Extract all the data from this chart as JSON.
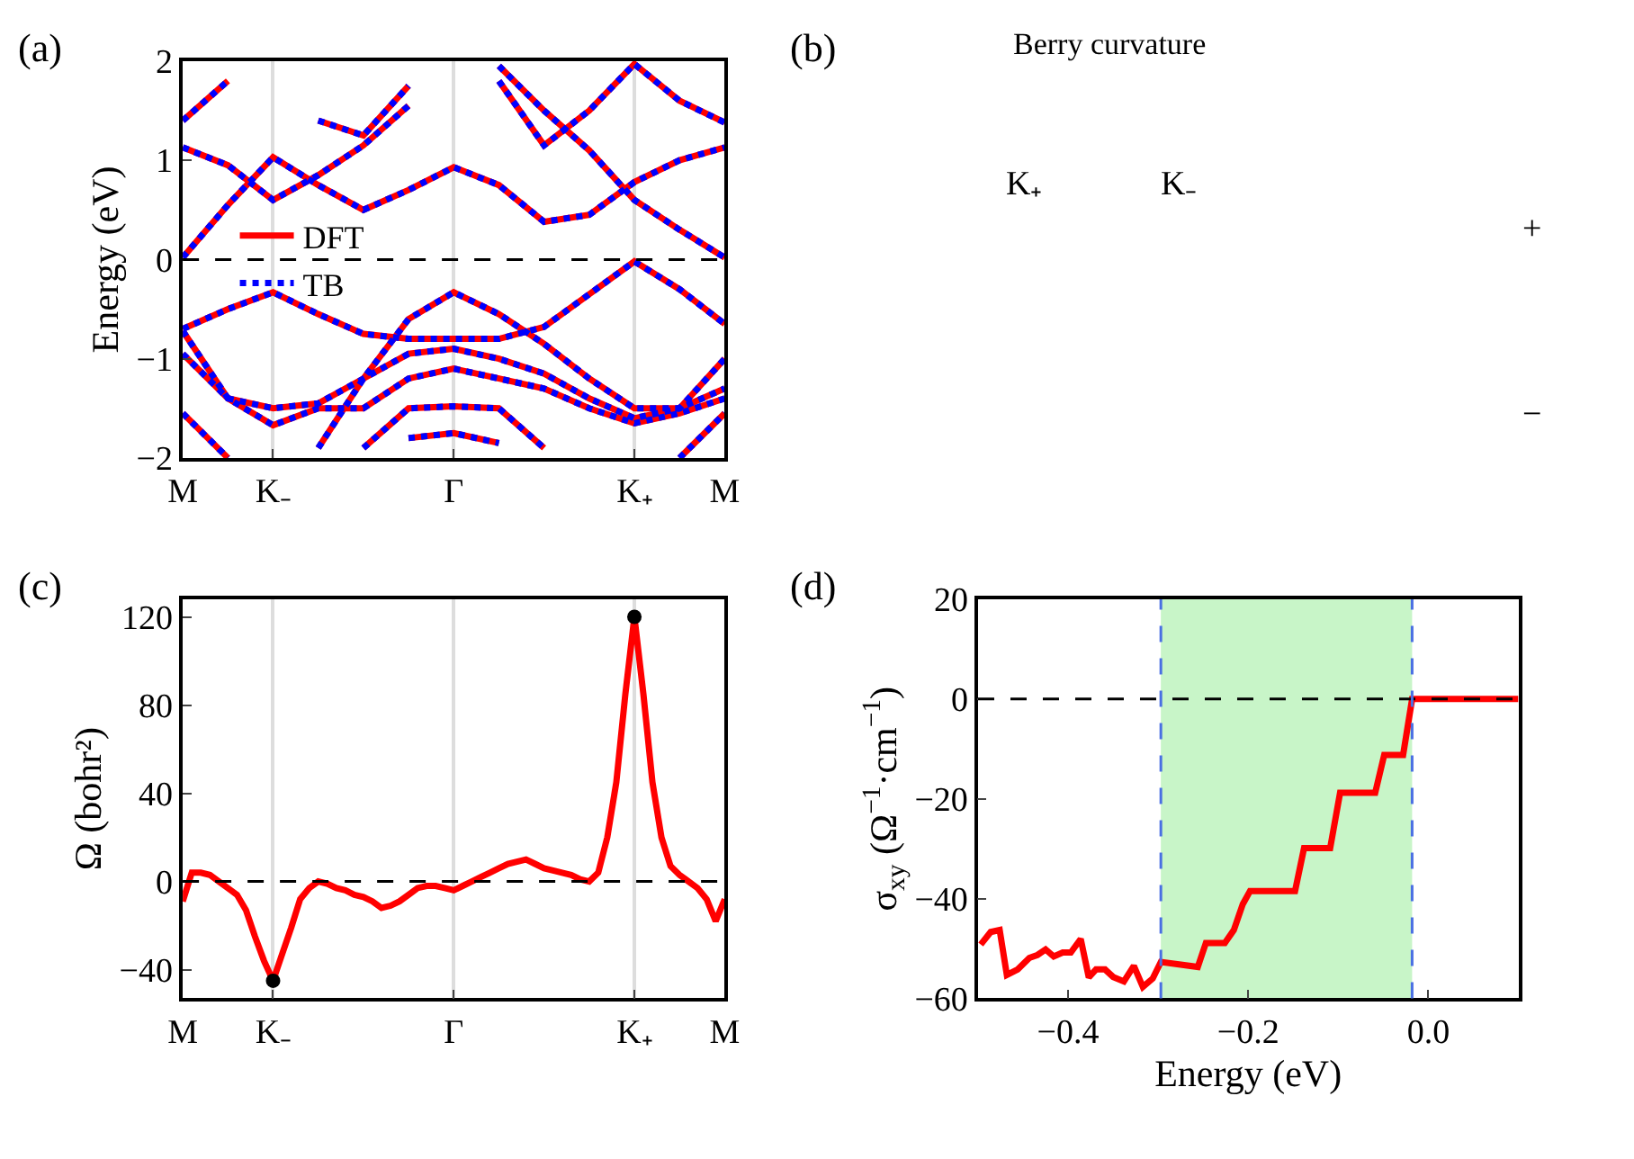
{
  "chart_data": [
    {
      "type": "line",
      "title": "(a)",
      "ylabel": "Energy (eV)",
      "grid": "x",
      "legend": "center left",
      "line_style": "solid",
      "categories": [
        "M",
        null,
        "K₋",
        null,
        null,
        null,
        "Γ",
        null,
        null,
        null,
        "K₊",
        null,
        "M"
      ],
      "ylim": [
        -2,
        2
      ],
      "yticks": [
        {
          "value": -2,
          "label": "−2"
        },
        {
          "value": -1,
          "label": "−1"
        },
        0,
        1,
        2
      ],
      "ref_lines": [
        {
          "axis": "y",
          "value": 0,
          "color": "#000000",
          "line_style": "dashed"
        }
      ],
      "series": [
        {
          "name": "DFT",
          "color": "#ff0000",
          "values": [
            0.02,
            0.55,
            1.03,
            0.75,
            0.5,
            0.7,
            0.93,
            0.75,
            0.38,
            0.45,
            0.78,
            1.0,
            1.13
          ]
        },
        {
          "color": "#ff0000",
          "values": [
            1.13,
            0.95,
            0.6,
            0.85,
            1.15,
            1.55,
            null,
            1.95,
            1.5,
            1.1,
            0.6,
            0.3,
            0.02
          ]
        },
        {
          "color": "#ff0000",
          "values": [
            1.4,
            1.8,
            null,
            1.4,
            1.25,
            1.75,
            null,
            1.8,
            1.15,
            1.5,
            1.97,
            1.6,
            1.38
          ]
        },
        {
          "color": "#ff0000",
          "values": [
            -0.7,
            -0.5,
            -0.33,
            -0.55,
            -0.75,
            -0.8,
            -0.8,
            -0.8,
            -0.68,
            -0.35,
            -0.02,
            -0.3,
            -0.65
          ]
        },
        {
          "color": "#ff0000",
          "values": [
            null,
            null,
            null,
            -1.9,
            -1.2,
            -0.6,
            -0.33,
            -0.55,
            -0.85,
            -1.2,
            -1.5,
            -1.5,
            -1.3
          ]
        },
        {
          "color": "#ff0000",
          "values": [
            -0.95,
            -1.4,
            -1.5,
            -1.45,
            -1.2,
            -0.95,
            -0.9,
            -1.0,
            -1.15,
            -1.4,
            -1.6,
            -1.5,
            -1.0
          ]
        },
        {
          "color": "#ff0000",
          "values": [
            -0.72,
            -1.4,
            -1.67,
            -1.5,
            -1.5,
            -1.2,
            -1.1,
            -1.2,
            -1.3,
            -1.5,
            -1.65,
            -1.55,
            -1.4
          ]
        },
        {
          "color": "#ff0000",
          "values": [
            null,
            null,
            null,
            null,
            -1.9,
            -1.5,
            -1.48,
            -1.5,
            -1.9,
            null,
            null,
            null,
            null
          ]
        },
        {
          "color": "#ff0000",
          "values": [
            null,
            null,
            null,
            null,
            null,
            -1.8,
            -1.75,
            -1.85,
            null,
            null,
            null,
            null,
            null
          ]
        },
        {
          "color": "#ff0000",
          "values": [
            -1.55,
            -2.0,
            null,
            null,
            null,
            null,
            null,
            null,
            null,
            null,
            null,
            -2.0,
            -1.55
          ]
        },
        {
          "name": "TB",
          "color": "#0000ff",
          "line_style": "dotted",
          "values": [
            0.02,
            0.55,
            1.03,
            0.75,
            0.5,
            0.7,
            0.93,
            0.75,
            0.38,
            0.45,
            0.78,
            1.0,
            1.13
          ]
        },
        {
          "color": "#0000ff",
          "line_style": "dotted",
          "values": [
            1.13,
            0.95,
            0.6,
            0.85,
            1.15,
            1.55,
            null,
            1.95,
            1.5,
            1.1,
            0.6,
            0.3,
            0.02
          ]
        },
        {
          "color": "#0000ff",
          "line_style": "dotted",
          "values": [
            1.4,
            1.8,
            null,
            1.4,
            1.25,
            1.75,
            null,
            1.8,
            1.15,
            1.5,
            1.97,
            1.6,
            1.38
          ]
        },
        {
          "color": "#0000ff",
          "line_style": "dotted",
          "values": [
            -0.7,
            -0.5,
            -0.33,
            -0.55,
            -0.75,
            -0.8,
            -0.8,
            -0.8,
            -0.68,
            -0.35,
            -0.02,
            -0.3,
            -0.65
          ]
        },
        {
          "color": "#0000ff",
          "line_style": "dotted",
          "values": [
            null,
            null,
            null,
            -1.9,
            -1.2,
            -0.6,
            -0.33,
            -0.55,
            -0.85,
            -1.2,
            -1.5,
            -1.5,
            -1.3
          ]
        },
        {
          "color": "#0000ff",
          "line_style": "dotted",
          "values": [
            -0.95,
            -1.4,
            -1.5,
            -1.45,
            -1.2,
            -0.95,
            -0.9,
            -1.0,
            -1.15,
            -1.4,
            -1.6,
            -1.5,
            -1.0
          ]
        },
        {
          "color": "#0000ff",
          "line_style": "dotted",
          "values": [
            -0.72,
            -1.4,
            -1.67,
            -1.5,
            -1.5,
            -1.2,
            -1.1,
            -1.2,
            -1.3,
            -1.5,
            -1.65,
            -1.55,
            -1.4
          ]
        },
        {
          "color": "#0000ff",
          "line_style": "dotted",
          "values": [
            null,
            null,
            null,
            null,
            -1.9,
            -1.5,
            -1.48,
            -1.5,
            -1.9,
            null,
            null,
            null,
            null
          ]
        },
        {
          "color": "#0000ff",
          "line_style": "dotted",
          "values": [
            null,
            null,
            null,
            null,
            null,
            -1.8,
            -1.75,
            -1.85,
            null,
            null,
            null,
            null,
            null
          ]
        },
        {
          "color": "#0000ff",
          "line_style": "dotted",
          "values": [
            -1.55,
            -2.0,
            null,
            null,
            null,
            null,
            null,
            null,
            null,
            null,
            null,
            -2.0,
            -1.55
          ]
        }
      ]
    },
    {
      "type": "other",
      "title": "(b)",
      "subtitle": "Berry curvature",
      "annotations": [
        "K₊",
        "K₋",
        "+",
        "−"
      ]
    },
    {
      "type": "line",
      "title": "(c)",
      "ylabel": "Ω (bohr²)",
      "grid": "x",
      "line_style": "solid",
      "categories": [
        "M",
        null,
        null,
        null,
        null,
        null,
        null,
        null,
        null,
        null,
        "K₋",
        null,
        null,
        null,
        null,
        null,
        null,
        null,
        null,
        null,
        null,
        null,
        null,
        null,
        null,
        null,
        null,
        null,
        null,
        null,
        "Γ",
        null,
        null,
        null,
        null,
        null,
        null,
        null,
        null,
        null,
        null,
        null,
        null,
        null,
        null,
        null,
        null,
        null,
        null,
        null,
        "K₊",
        null,
        null,
        null,
        null,
        null,
        null,
        null,
        null,
        null,
        "M"
      ],
      "ylim": [
        -53,
        128
      ],
      "yticks": [
        {
          "value": -40,
          "label": "−40"
        },
        0,
        40,
        80,
        120
      ],
      "ref_lines": [
        {
          "axis": "y",
          "value": 0,
          "color": "#000000",
          "line_style": "dashed"
        }
      ],
      "series": [
        {
          "color": "#ff0000",
          "values": [
            -9,
            4,
            4,
            3,
            0,
            -3,
            -6,
            -13,
            -25,
            -36,
            -45,
            -33,
            -21,
            -8,
            -3,
            0,
            -1,
            -3,
            -4,
            -6,
            -7,
            -9,
            -12,
            -11,
            -9,
            -6,
            -3,
            -2,
            -2,
            -3,
            -4,
            -2,
            0,
            2,
            4,
            6,
            8,
            9,
            10,
            8,
            6,
            5,
            4,
            3,
            1,
            0,
            4,
            20,
            45,
            85,
            120,
            85,
            45,
            20,
            7,
            3,
            0,
            -3,
            -8,
            -18,
            -8
          ]
        },
        {
          "type": "scatter",
          "marker": "circle",
          "color": "#000000",
          "values": [
            null,
            null,
            null,
            null,
            null,
            null,
            null,
            null,
            null,
            null,
            -45,
            null,
            null,
            null,
            null,
            null,
            null,
            null,
            null,
            null,
            null,
            null,
            null,
            null,
            null,
            null,
            null,
            null,
            null,
            null,
            null,
            null,
            null,
            null,
            null,
            null,
            null,
            null,
            null,
            null,
            null,
            null,
            null,
            null,
            null,
            null,
            null,
            null,
            null,
            null,
            120,
            null,
            null,
            null,
            null,
            null,
            null,
            null,
            null,
            null,
            null
          ]
        }
      ]
    },
    {
      "type": "line",
      "title": "(d)",
      "xlabel": "Energy (eV)",
      "ylabel": "σ$_{xy}$ (Ω$^{−1}$·cm$^{−1}$)",
      "grid": false,
      "line_style": "solid",
      "xlim": [
        -0.5,
        0.1
      ],
      "xticks": [
        {
          "value": -0.4,
          "label": "−0.4"
        },
        {
          "value": -0.2,
          "label": "−0.2"
        },
        {
          "value": 0,
          "label": "0.0"
        }
      ],
      "ylim": [
        -60,
        20
      ],
      "yticks": [
        {
          "value": -60,
          "label": "−60"
        },
        {
          "value": -40,
          "label": "−40"
        },
        {
          "value": -20,
          "label": "−20"
        },
        0,
        20
      ],
      "ref_lines": [
        {
          "axis": "y",
          "value": 0,
          "color": "#000000",
          "line_style": "dashed"
        },
        {
          "axis": "x",
          "value": -0.297,
          "color": "#4a6fe3",
          "line_style": "dashed"
        },
        {
          "axis": "x",
          "value": -0.018,
          "color": "#4a6fe3",
          "line_style": "dashed"
        }
      ],
      "bands": [
        {
          "axis": "x",
          "from": -0.297,
          "to": -0.018,
          "color": "#c8f5c8"
        }
      ],
      "series": [
        {
          "color": "#ff0000",
          "x": [
            -0.497,
            -0.486,
            -0.476,
            -0.468,
            -0.456,
            -0.443,
            -0.434,
            -0.425,
            -0.416,
            -0.406,
            -0.397,
            -0.386,
            -0.377,
            -0.369,
            -0.359,
            -0.35,
            -0.338,
            -0.327,
            -0.317,
            -0.306,
            -0.297,
            -0.256,
            -0.247,
            -0.226,
            -0.216,
            -0.206,
            -0.198,
            -0.148,
            -0.138,
            -0.109,
            -0.098,
            -0.059,
            -0.049,
            -0.028,
            -0.018,
            0.1
          ],
          "values": [
            -49.2,
            -46.7,
            -46.3,
            -55.3,
            -54.2,
            -51.9,
            -51.3,
            -50.2,
            -51.6,
            -50.8,
            -50.8,
            -48.1,
            -55.8,
            -54.2,
            -54.2,
            -55.7,
            -56.6,
            -53.5,
            -57.7,
            -56.0,
            -52.7,
            -53.7,
            -48.9,
            -48.9,
            -46.3,
            -41.1,
            -38.5,
            -38.5,
            -29.9,
            -29.9,
            -18.8,
            -18.8,
            -11.2,
            -11.2,
            0,
            0
          ]
        }
      ]
    }
  ]
}
